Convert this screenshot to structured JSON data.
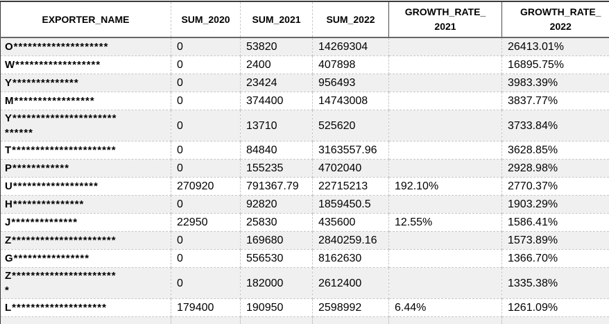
{
  "colors": {
    "border_dark": "#3a3a3a",
    "header_underline": "#666666",
    "grid_line": "#c6c6c6",
    "row_stripe": "#f0f0f0",
    "text_color": "#000000"
  },
  "table": {
    "columns": [
      {
        "key": "exporter_name",
        "label": "EXPORTER_NAME"
      },
      {
        "key": "sum_2020",
        "label": "SUM_2020"
      },
      {
        "key": "sum_2021",
        "label": "SUM_2021"
      },
      {
        "key": "sum_2022",
        "label": "SUM_2022"
      },
      {
        "key": "growth_rate_2021",
        "label": "GROWTH_RATE_\n2021"
      },
      {
        "key": "growth_rate_2022",
        "label": "GROWTH_RATE_\n2022"
      }
    ],
    "rows": [
      {
        "exporter_name": "O********************",
        "sum_2020": "0",
        "sum_2021": "53820",
        "sum_2022": "14269304",
        "growth_rate_2021": "",
        "growth_rate_2022": "26413.01%"
      },
      {
        "exporter_name": "W******************",
        "sum_2020": "0",
        "sum_2021": "2400",
        "sum_2022": "407898",
        "growth_rate_2021": "",
        "growth_rate_2022": "16895.75%"
      },
      {
        "exporter_name": "Y**************",
        "sum_2020": "0",
        "sum_2021": "23424",
        "sum_2022": "956493",
        "growth_rate_2021": "",
        "growth_rate_2022": "3983.39%"
      },
      {
        "exporter_name": "M*****************",
        "sum_2020": "0",
        "sum_2021": "374400",
        "sum_2022": "14743008",
        "growth_rate_2021": "",
        "growth_rate_2022": "3837.77%"
      },
      {
        "exporter_name": "Y**********************\n******",
        "sum_2020": "0",
        "sum_2021": "13710",
        "sum_2022": "525620",
        "growth_rate_2021": "",
        "growth_rate_2022": "3733.84%"
      },
      {
        "exporter_name": "T**********************",
        "sum_2020": "0",
        "sum_2021": "84840",
        "sum_2022": "3163557.96",
        "growth_rate_2021": "",
        "growth_rate_2022": "3628.85%"
      },
      {
        "exporter_name": "P************",
        "sum_2020": "0",
        "sum_2021": "155235",
        "sum_2022": "4702040",
        "growth_rate_2021": "",
        "growth_rate_2022": "2928.98%"
      },
      {
        "exporter_name": "U******************",
        "sum_2020": "270920",
        "sum_2021": "791367.79",
        "sum_2022": "22715213",
        "growth_rate_2021": "192.10%",
        "growth_rate_2022": "2770.37%"
      },
      {
        "exporter_name": "H***************",
        "sum_2020": "0",
        "sum_2021": "92820",
        "sum_2022": "1859450.5",
        "growth_rate_2021": "",
        "growth_rate_2022": "1903.29%"
      },
      {
        "exporter_name": "J**************",
        "sum_2020": "22950",
        "sum_2021": "25830",
        "sum_2022": "435600",
        "growth_rate_2021": "12.55%",
        "growth_rate_2022": "1586.41%"
      },
      {
        "exporter_name": "Z**********************",
        "sum_2020": "0",
        "sum_2021": "169680",
        "sum_2022": "2840259.16",
        "growth_rate_2021": "",
        "growth_rate_2022": "1573.89%"
      },
      {
        "exporter_name": "G****************",
        "sum_2020": "0",
        "sum_2021": "556530",
        "sum_2022": "8162630",
        "growth_rate_2021": "",
        "growth_rate_2022": "1366.70%"
      },
      {
        "exporter_name": "Z**********************\n*",
        "sum_2020": "0",
        "sum_2021": "182000",
        "sum_2022": "2612400",
        "growth_rate_2021": "",
        "growth_rate_2022": "1335.38%"
      },
      {
        "exporter_name": "L********************",
        "sum_2020": "179400",
        "sum_2021": "190950",
        "sum_2022": "2598992",
        "growth_rate_2021": "6.44%",
        "growth_rate_2022": "1261.09%"
      }
    ]
  }
}
